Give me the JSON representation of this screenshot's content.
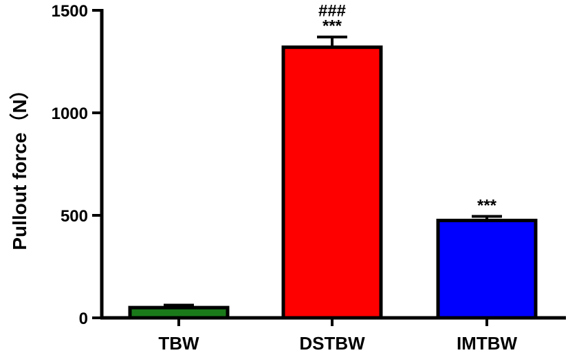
{
  "chart_data": {
    "type": "bar",
    "categories": [
      "TBW",
      "DSTBW",
      "IMTBW"
    ],
    "values": [
      50,
      1320,
      475
    ],
    "errors": [
      12,
      50,
      20
    ],
    "colors": [
      "#1a7a1a",
      "#ff0000",
      "#0000ff"
    ],
    "ylabel": "Pullout force（N）",
    "ylim": [
      0,
      1500
    ],
    "yticks": [
      0,
      500,
      1000,
      1500
    ],
    "yticklabels": [
      "0",
      "500",
      "1000",
      "1500"
    ],
    "annotations": [
      {
        "category": "DSTBW",
        "lines": [
          "###",
          "***"
        ]
      },
      {
        "category": "IMTBW",
        "lines": [
          "***"
        ]
      }
    ],
    "grid": false
  }
}
